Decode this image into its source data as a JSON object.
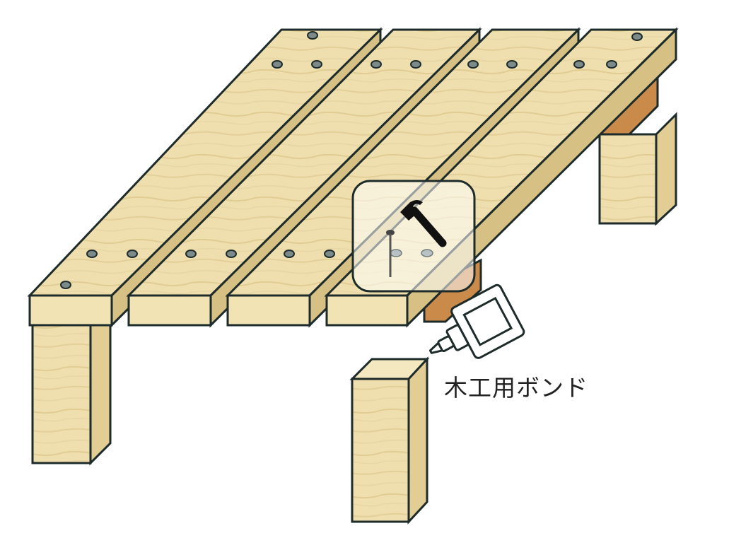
{
  "labels": {
    "glue_label": "木工用ボンド"
  },
  "icons": {
    "tool_callout": "hammer-and-nail-icon",
    "glue": "glue-bottle-icon"
  },
  "colors": {
    "wood_light": "#f1e3b4",
    "wood_mid": "#e6d29b",
    "wood_dark": "#d1b978",
    "bearer": "#c98a4a",
    "outline": "#1d2b2a",
    "hole": "#7c8a8a"
  }
}
